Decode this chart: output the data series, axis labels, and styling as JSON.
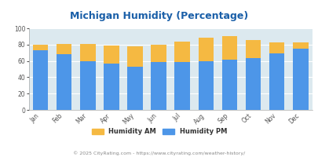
{
  "title": "Michigan Humidity (Percentage)",
  "months": [
    "Jan",
    "Feb",
    "Mar",
    "Apr",
    "May",
    "Jun",
    "Jul",
    "Aug",
    "Sep",
    "Oct",
    "Nov",
    "Dec"
  ],
  "humidity_pm": [
    73,
    68,
    60,
    57,
    53,
    59,
    59,
    60,
    62,
    63,
    69,
    75
  ],
  "humidity_am_extra": [
    7,
    13,
    21,
    22,
    25,
    21,
    25,
    28,
    28,
    23,
    14,
    8
  ],
  "color_pm": "#4d96e8",
  "color_am": "#f5b942",
  "color_bg_plot": "#dce9ef",
  "color_bg_fig": "#ffffff",
  "color_title": "#1a5fa8",
  "color_footer": "#888888",
  "ylim": [
    0,
    100
  ],
  "yticks": [
    0,
    20,
    40,
    60,
    80,
    100
  ],
  "footer_text": "© 2025 CityRating.com - https://www.cityrating.com/weather-history/",
  "legend_am": "Humidity AM",
  "legend_pm": "Humidity PM"
}
